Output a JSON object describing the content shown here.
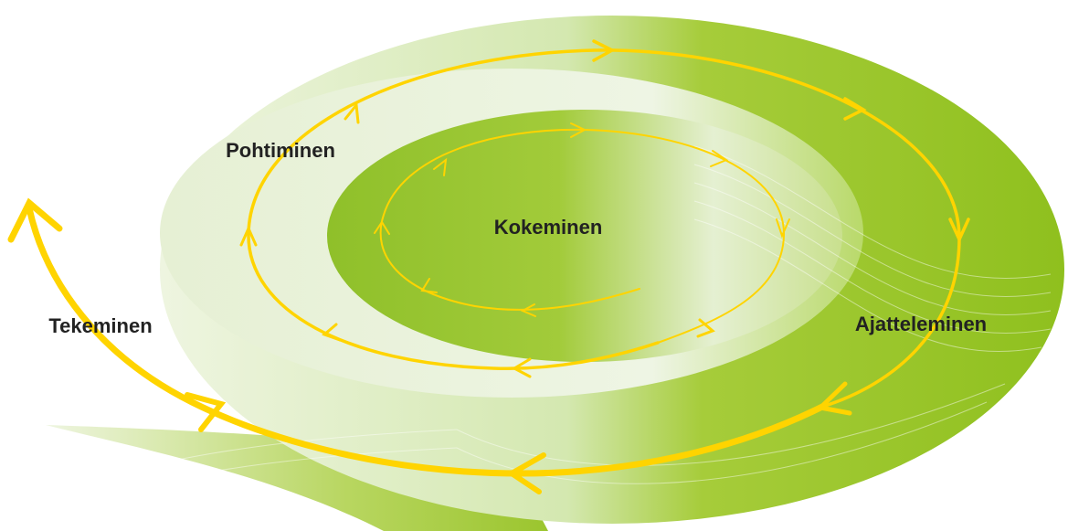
{
  "nodes": [
    {
      "label": "Kokeminen"
    },
    {
      "label": "Pohtiminen"
    },
    {
      "label": "Ajatteleminen"
    },
    {
      "label": "Tekeminen"
    }
  ]
}
